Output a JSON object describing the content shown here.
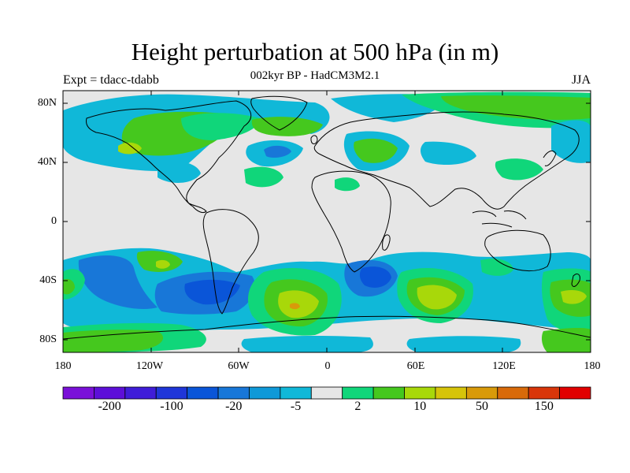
{
  "title": "Height perturbation at 500 hPa (in m)",
  "subtitle": "002kyr BP - HadCM3M2.1",
  "left_label": "Expt = tdacc-tdabb",
  "right_label": "JJA",
  "latitude_ticks": [
    "80N",
    "40N",
    "0",
    "40S",
    "80S"
  ],
  "longitude_ticks": [
    "180",
    "120W",
    "60W",
    "0",
    "60E",
    "120E",
    "180"
  ],
  "colorbar": {
    "colors": [
      "#7a10d8",
      "#5d0fd8",
      "#3f1dd8",
      "#1f36d8",
      "#0a55d8",
      "#1877d8",
      "#0f99d8",
      "#10b8d8",
      "#e6e6e6",
      "#10d67a",
      "#45c81e",
      "#a8d80a",
      "#d6c40a",
      "#d89a0a",
      "#d86a0a",
      "#d8360a",
      "#e10000"
    ],
    "labels": [
      "-200",
      "-100",
      "-20",
      "-5",
      "2",
      "10",
      "50",
      "150"
    ],
    "label_positions": [
      1.5,
      3.5,
      5.5,
      7.5,
      9.5,
      11.5,
      13.5,
      15.5
    ]
  }
}
